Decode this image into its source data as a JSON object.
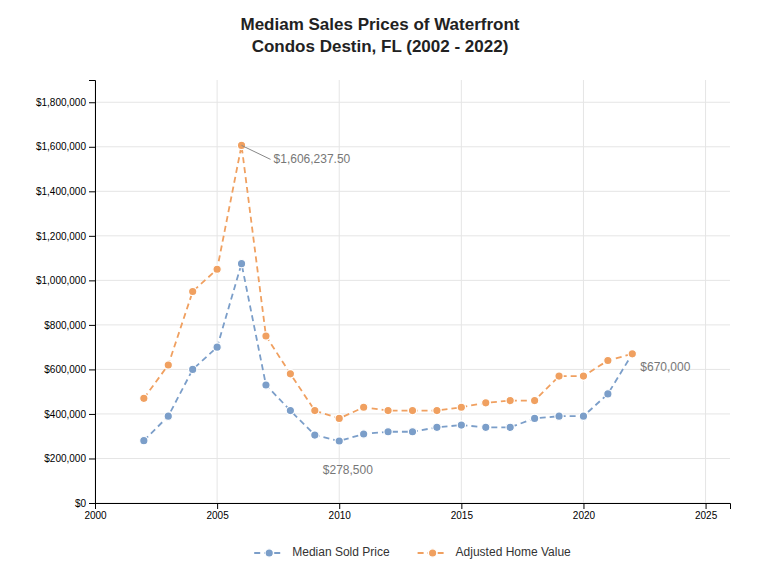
{
  "chart_data": {
    "type": "line",
    "title": [
      "Mediam Sales Prices of Waterfront",
      "Condos Destin, FL (2002 - 2022)"
    ],
    "x": [
      2002,
      2003,
      2004,
      2005,
      2006,
      2007,
      2008,
      2009,
      2010,
      2011,
      2012,
      2013,
      2014,
      2015,
      2016,
      2017,
      2018,
      2019,
      2020,
      2021,
      2022
    ],
    "series": [
      {
        "name": "Median Sold Price",
        "color": "#7b9ec9",
        "marker": "circle",
        "line_style": "dashed",
        "values": [
          280000,
          390000,
          600000,
          700000,
          1075000,
          530000,
          415000,
          305000,
          278500,
          310000,
          320000,
          320000,
          340000,
          350000,
          340000,
          340000,
          380000,
          390000,
          390000,
          490000,
          670000
        ]
      },
      {
        "name": "Adjusted Home Value",
        "color": "#f0a060",
        "marker": "circle",
        "line_style": "dashed",
        "values": [
          470000,
          620000,
          950000,
          1050000,
          1606237.5,
          750000,
          580000,
          415000,
          380000,
          430000,
          415000,
          415000,
          415000,
          430000,
          450000,
          460000,
          460000,
          570000,
          570000,
          640000,
          670000
        ]
      }
    ],
    "xlim": [
      2000,
      2026
    ],
    "xticks": [
      2000,
      2005,
      2010,
      2015,
      2020,
      2025
    ],
    "ylim": [
      0,
      1900000
    ],
    "yticks": [
      {
        "value": 0,
        "label": "$0"
      },
      {
        "value": 200000,
        "label": "$200,000"
      },
      {
        "value": 400000,
        "label": "$400,000"
      },
      {
        "value": 600000,
        "label": "$600,000"
      },
      {
        "value": 800000,
        "label": "$800,000"
      },
      {
        "value": 1000000,
        "label": "$1,000,000"
      },
      {
        "value": 1200000,
        "label": "$1,200,000"
      },
      {
        "value": 1400000,
        "label": "$1,400,000"
      },
      {
        "value": 1600000,
        "label": "$1,600,000"
      },
      {
        "value": 1800000,
        "label": "$1,800,000"
      }
    ],
    "annotations": [
      {
        "text": "$1,606,237.50",
        "x": 2006,
        "y": 1606237.5
      },
      {
        "text": "$278,500",
        "x": 2009,
        "y": 278500
      },
      {
        "text": "$670,000",
        "x": 2022,
        "y": 670000
      }
    ],
    "grid": true,
    "legend": "bottom"
  }
}
